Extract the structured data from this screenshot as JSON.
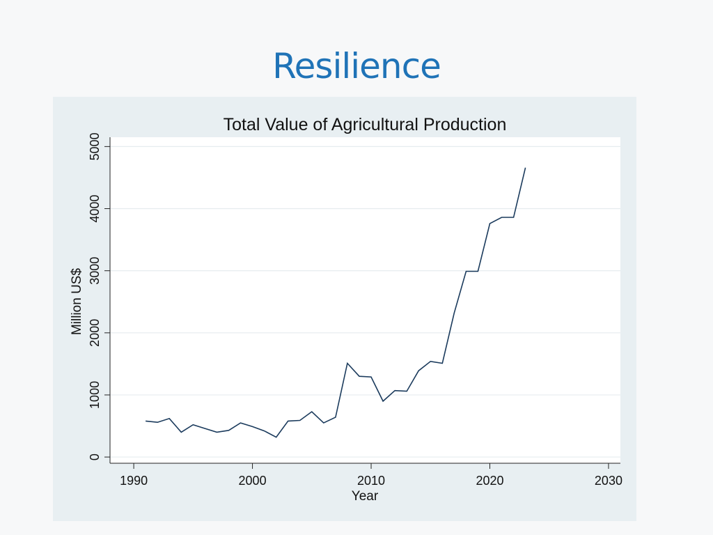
{
  "slide": {
    "title": "Resilience"
  },
  "chart_data": {
    "type": "line",
    "title": "Total Value of Agricultural Production",
    "xlabel": "Year",
    "ylabel": "Million US$",
    "xlim": [
      1988,
      2031
    ],
    "ylim": [
      -100,
      5150
    ],
    "xticks": [
      1990,
      2000,
      2010,
      2020,
      2030
    ],
    "yticks": [
      0,
      1000,
      2000,
      3000,
      4000,
      5000
    ],
    "grid": true,
    "legend": "none",
    "colors": {
      "line": "#1a3a5c",
      "panel": "#e8eff2",
      "plot_bg": "#ffffff",
      "grid": "#e6ecef"
    },
    "series": [
      {
        "x": [
          1991,
          1992,
          1993,
          1994,
          1995,
          1996,
          1997,
          1998,
          1999,
          2000,
          2001,
          2002,
          2003,
          2004,
          2005,
          2006,
          2007,
          2008,
          2009,
          2010,
          2011,
          2012,
          2013,
          2014,
          2015,
          2016,
          2017,
          2018,
          2019,
          2020,
          2021,
          2022,
          2023
        ],
        "values": [
          580,
          560,
          620,
          400,
          520,
          460,
          400,
          430,
          550,
          490,
          420,
          320,
          580,
          590,
          730,
          550,
          640,
          1510,
          1300,
          1290,
          900,
          1070,
          1060,
          1390,
          1540,
          1510,
          2320,
          2990,
          2990,
          3760,
          3860,
          3860,
          4660
        ]
      }
    ]
  }
}
